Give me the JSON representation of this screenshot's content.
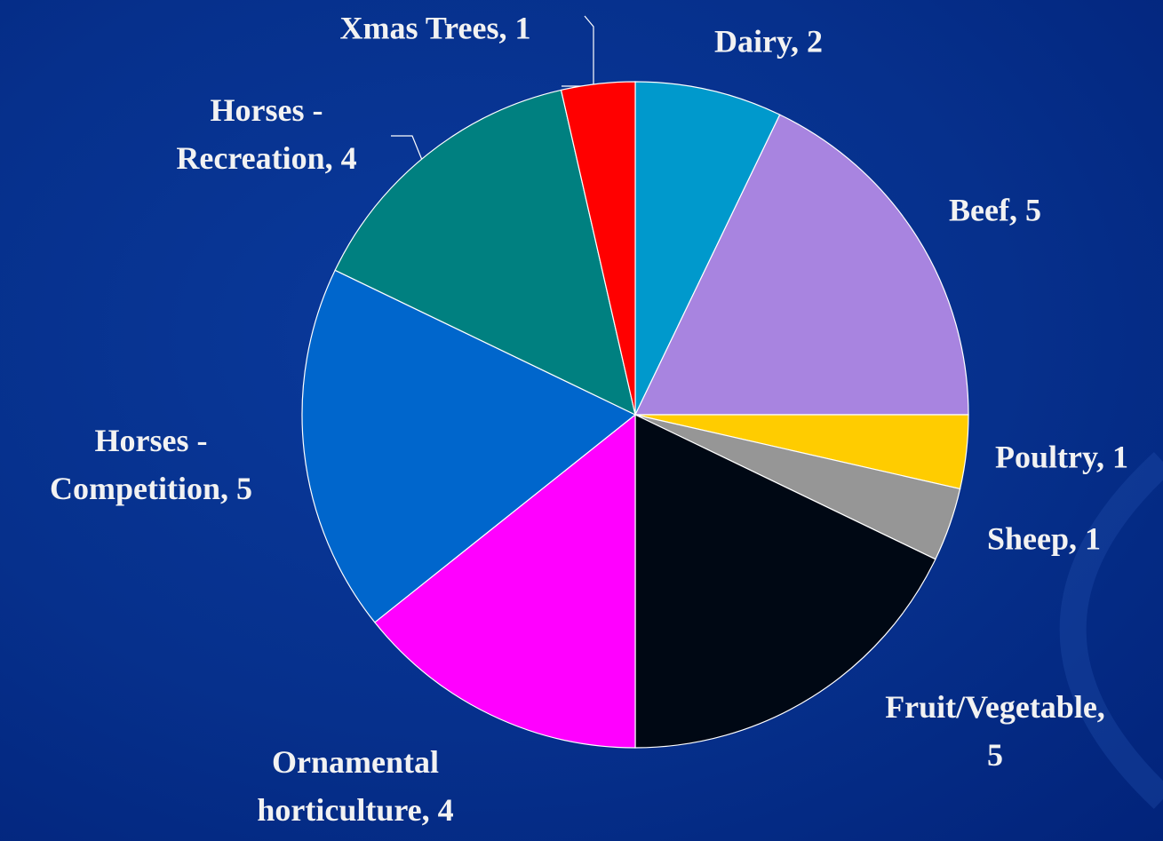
{
  "chart_data": {
    "type": "pie",
    "values": [
      2,
      5,
      1,
      1,
      5,
      4,
      5,
      4,
      1
    ],
    "value_labels": [
      "Dairy, 2",
      "Beef, 5",
      "Poultry, 1",
      "Sheep, 1",
      "Fruit/Vegetable, 5",
      "Ornamental horticulture, 4",
      "Horses - Competition, 5",
      "Horses - Recreation, 4",
      "Xmas Trees, 1"
    ],
    "colors": [
      "#0099cc",
      "#a884e0",
      "#ffcc00",
      "#969696",
      "#000814",
      "#ff00ff",
      "#0066cc",
      "#008080",
      "#ff0000"
    ]
  }
}
